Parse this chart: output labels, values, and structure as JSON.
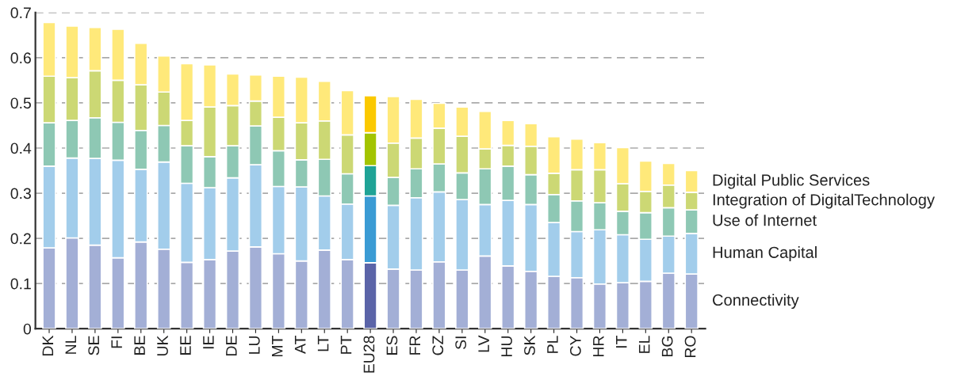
{
  "chart_data": {
    "type": "bar",
    "stacked": true,
    "legend": "right",
    "grid": "y",
    "categories": [
      "DK",
      "NL",
      "SE",
      "FI",
      "BE",
      "UK",
      "EE",
      "IE",
      "DE",
      "LU",
      "MT",
      "AT",
      "LT",
      "PT",
      "EU28",
      "ES",
      "FR",
      "CZ",
      "SI",
      "LV",
      "HU",
      "SK",
      "PL",
      "CY",
      "HR",
      "IT",
      "EL",
      "BG",
      "RO"
    ],
    "ylim": [
      0,
      0.7
    ],
    "yticks": [
      0,
      0.1,
      0.2,
      0.3,
      0.4,
      0.5,
      0.6,
      0.7
    ],
    "series": [
      {
        "name": "Connectivity",
        "color": "#a3afd6",
        "colors": [
          null,
          null,
          null,
          null,
          null,
          null,
          null,
          null,
          null,
          null,
          null,
          null,
          null,
          null,
          "#5b64a8",
          null,
          null,
          null,
          null,
          null,
          null,
          null,
          null,
          null,
          null,
          null,
          null,
          null,
          null
        ],
        "values": [
          0.179,
          0.201,
          0.185,
          0.157,
          0.192,
          0.176,
          0.147,
          0.153,
          0.172,
          0.181,
          0.166,
          0.15,
          0.174,
          0.153,
          0.146,
          0.132,
          0.13,
          0.148,
          0.13,
          0.161,
          0.139,
          0.127,
          0.116,
          0.113,
          0.099,
          0.102,
          0.105,
          0.123,
          0.121
        ]
      },
      {
        "name": "Human Capital",
        "color": "#a2cdeb",
        "colors": [
          null,
          null,
          null,
          null,
          null,
          null,
          null,
          null,
          null,
          null,
          null,
          null,
          null,
          null,
          "#3a9bd4",
          null,
          null,
          null,
          null,
          null,
          null,
          null,
          null,
          null,
          null,
          null,
          null,
          null,
          null
        ],
        "values": [
          0.181,
          0.177,
          0.192,
          0.216,
          0.161,
          0.193,
          0.175,
          0.159,
          0.162,
          0.182,
          0.149,
          0.164,
          0.12,
          0.123,
          0.148,
          0.141,
          0.16,
          0.155,
          0.156,
          0.114,
          0.145,
          0.148,
          0.119,
          0.102,
          0.12,
          0.106,
          0.093,
          0.082,
          0.09
        ]
      },
      {
        "name": "Use of Internet",
        "color": "#8ec8b4",
        "colors": [
          null,
          null,
          null,
          null,
          null,
          null,
          null,
          null,
          null,
          null,
          null,
          null,
          null,
          null,
          "#1fa396",
          null,
          null,
          null,
          null,
          null,
          null,
          null,
          null,
          null,
          null,
          null,
          null,
          null,
          null
        ],
        "values": [
          0.096,
          0.083,
          0.09,
          0.084,
          0.086,
          0.081,
          0.083,
          0.069,
          0.071,
          0.086,
          0.079,
          0.06,
          0.081,
          0.067,
          0.067,
          0.062,
          0.064,
          0.062,
          0.059,
          0.079,
          0.076,
          0.066,
          0.062,
          0.068,
          0.06,
          0.052,
          0.059,
          0.063,
          0.052
        ]
      },
      {
        "name": "Integration of DigitalTechnology",
        "color": "#ccd874",
        "colors": [
          null,
          null,
          null,
          null,
          null,
          null,
          null,
          null,
          null,
          null,
          null,
          null,
          null,
          null,
          "#a3c400",
          null,
          null,
          null,
          null,
          null,
          null,
          null,
          null,
          null,
          null,
          null,
          null,
          null,
          null
        ],
        "values": [
          0.103,
          0.095,
          0.104,
          0.093,
          0.101,
          0.074,
          0.056,
          0.11,
          0.089,
          0.055,
          0.074,
          0.082,
          0.085,
          0.086,
          0.073,
          0.076,
          0.068,
          0.079,
          0.081,
          0.044,
          0.046,
          0.063,
          0.047,
          0.069,
          0.073,
          0.061,
          0.047,
          0.05,
          0.039
        ]
      },
      {
        "name": "Digital Public Services",
        "color": "#ffe97a",
        "colors": [
          null,
          null,
          null,
          null,
          null,
          null,
          null,
          null,
          null,
          null,
          null,
          null,
          null,
          null,
          "#fbc900",
          null,
          null,
          null,
          null,
          null,
          null,
          null,
          null,
          null,
          null,
          null,
          null,
          null,
          null
        ],
        "values": [
          0.119,
          0.114,
          0.096,
          0.113,
          0.092,
          0.08,
          0.126,
          0.093,
          0.07,
          0.058,
          0.091,
          0.101,
          0.088,
          0.098,
          0.082,
          0.103,
          0.086,
          0.055,
          0.065,
          0.083,
          0.055,
          0.05,
          0.081,
          0.068,
          0.06,
          0.08,
          0.067,
          0.048,
          0.048
        ]
      }
    ]
  }
}
